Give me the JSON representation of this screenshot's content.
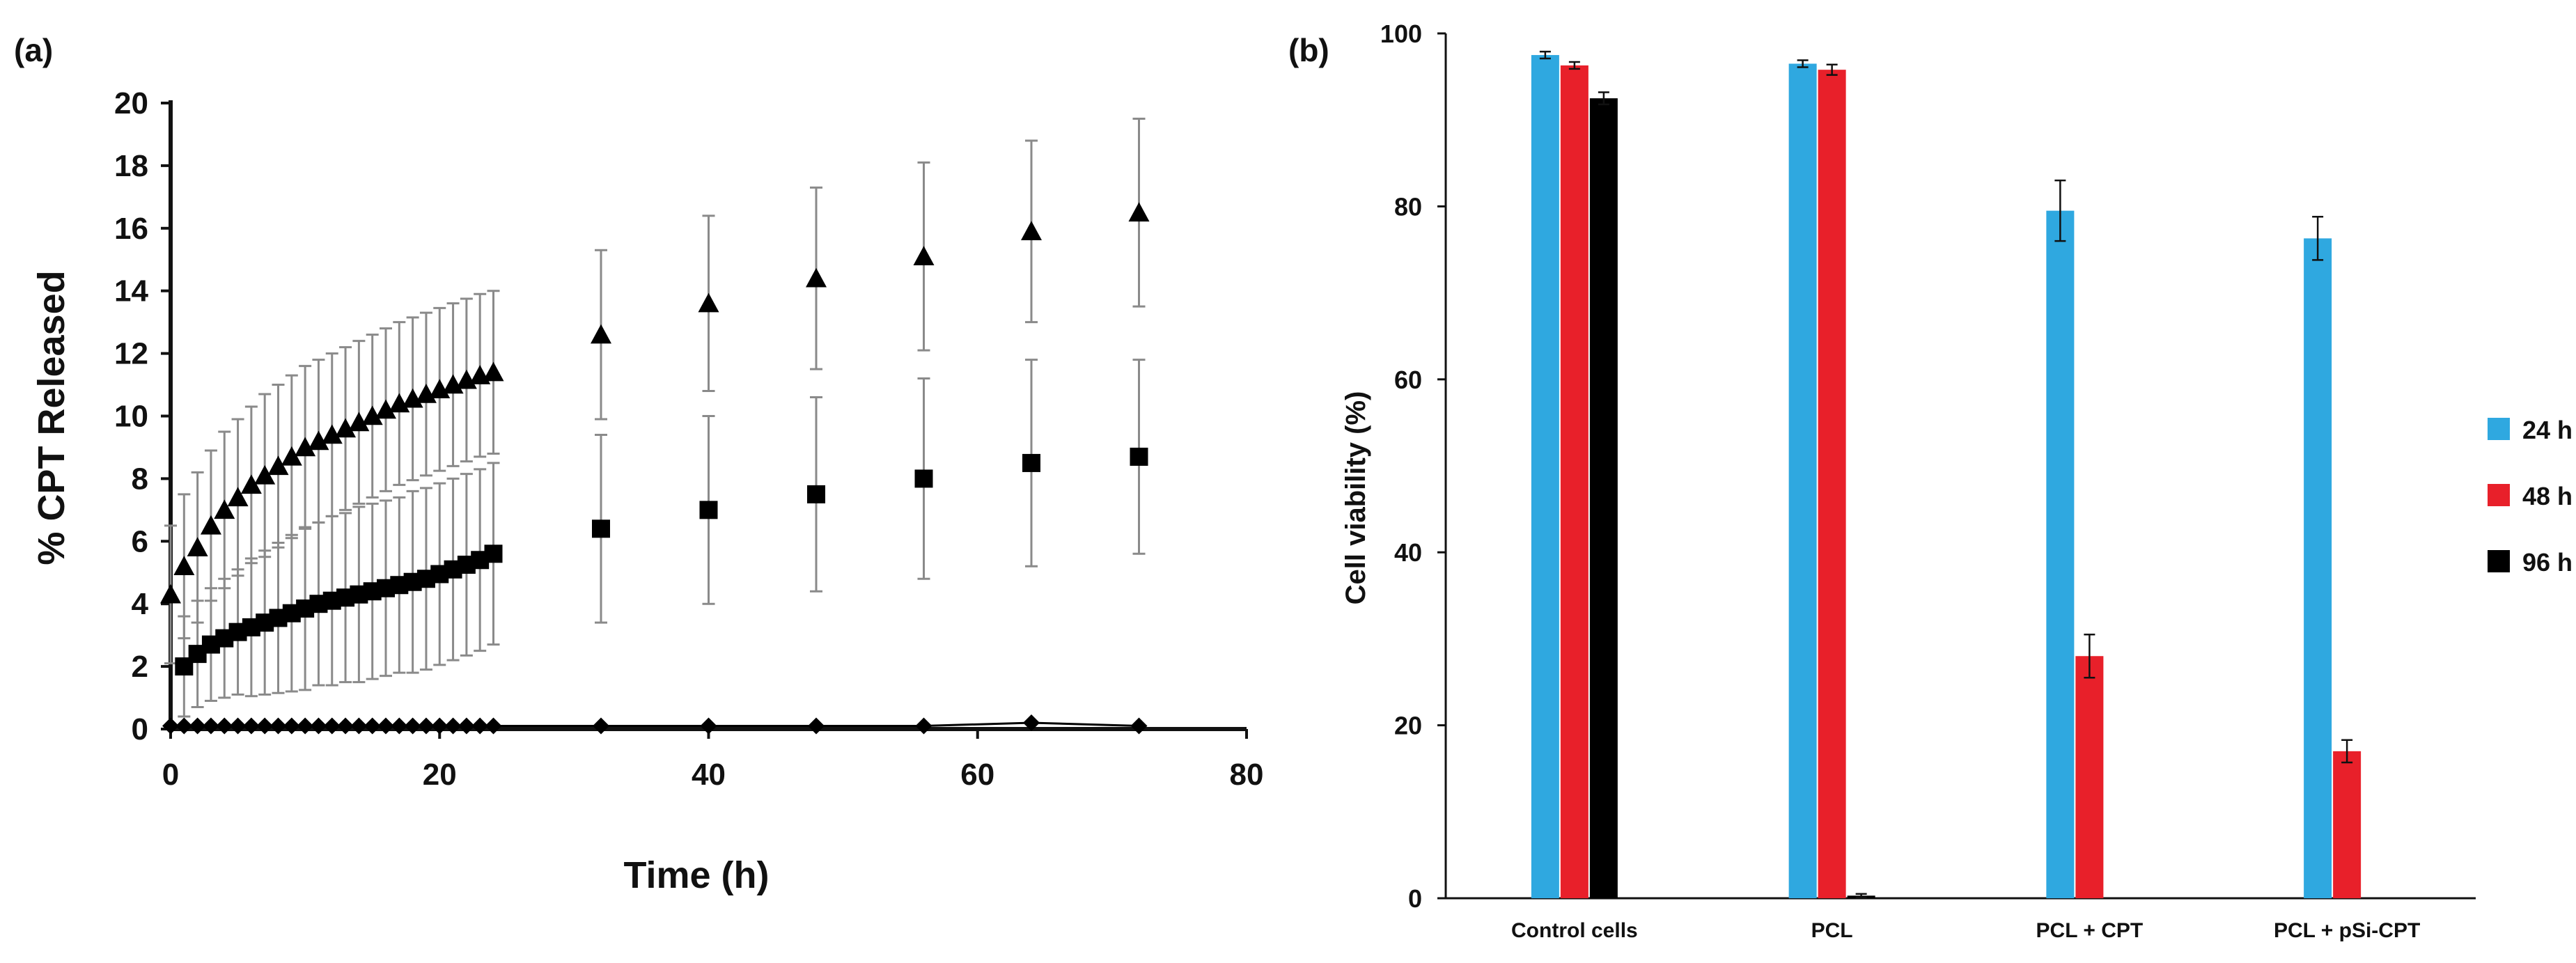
{
  "chart_data": [
    {
      "panel_label": "(a)",
      "type": "scatter",
      "xlabel": "Time (h)",
      "ylabel": "% CPT Released",
      "xlim": [
        0,
        80
      ],
      "ylim": [
        0,
        20
      ],
      "x_ticks": [
        "0",
        "20",
        "40",
        "60",
        "80"
      ],
      "y_ticks": [
        "0",
        "2",
        "4",
        "6",
        "8",
        "10",
        "12",
        "14",
        "16",
        "18",
        "20"
      ],
      "series": [
        {
          "marker": "triangle",
          "points": [
            {
              "x": 0,
              "y": 4.3,
              "err": 2.2
            },
            {
              "x": 1,
              "y": 5.2,
              "err": 2.3
            },
            {
              "x": 2,
              "y": 5.8,
              "err": 2.4
            },
            {
              "x": 3,
              "y": 6.5,
              "err": 2.4
            },
            {
              "x": 4,
              "y": 7.0,
              "err": 2.5
            },
            {
              "x": 5,
              "y": 7.4,
              "err": 2.5
            },
            {
              "x": 6,
              "y": 7.8,
              "err": 2.5
            },
            {
              "x": 7,
              "y": 8.1,
              "err": 2.6
            },
            {
              "x": 8,
              "y": 8.4,
              "err": 2.6
            },
            {
              "x": 9,
              "y": 8.7,
              "err": 2.6
            },
            {
              "x": 10,
              "y": 9.0,
              "err": 2.6
            },
            {
              "x": 11,
              "y": 9.2,
              "err": 2.6
            },
            {
              "x": 12,
              "y": 9.4,
              "err": 2.6
            },
            {
              "x": 13,
              "y": 9.6,
              "err": 2.6
            },
            {
              "x": 14,
              "y": 9.8,
              "err": 2.6
            },
            {
              "x": 15,
              "y": 10.0,
              "err": 2.6
            },
            {
              "x": 16,
              "y": 10.2,
              "err": 2.6
            },
            {
              "x": 17,
              "y": 10.4,
              "err": 2.6
            },
            {
              "x": 18,
              "y": 10.55,
              "err": 2.6
            },
            {
              "x": 19,
              "y": 10.7,
              "err": 2.6
            },
            {
              "x": 20,
              "y": 10.85,
              "err": 2.6
            },
            {
              "x": 21,
              "y": 11.0,
              "err": 2.6
            },
            {
              "x": 22,
              "y": 11.15,
              "err": 2.6
            },
            {
              "x": 23,
              "y": 11.3,
              "err": 2.6
            },
            {
              "x": 24,
              "y": 11.4,
              "err": 2.6
            },
            {
              "x": 32,
              "y": 12.6,
              "err": 2.7
            },
            {
              "x": 40,
              "y": 13.6,
              "err": 2.8
            },
            {
              "x": 48,
              "y": 14.4,
              "err": 2.9
            },
            {
              "x": 56,
              "y": 15.1,
              "err": 3.0
            },
            {
              "x": 64,
              "y": 15.9,
              "err": 2.9
            },
            {
              "x": 72,
              "y": 16.5,
              "err": 3.0
            }
          ]
        },
        {
          "marker": "square",
          "points": [
            {
              "x": 1,
              "y": 2.0,
              "err": 1.6
            },
            {
              "x": 2,
              "y": 2.4,
              "err": 1.7
            },
            {
              "x": 3,
              "y": 2.7,
              "err": 1.8
            },
            {
              "x": 4,
              "y": 2.9,
              "err": 1.9
            },
            {
              "x": 5,
              "y": 3.1,
              "err": 2.0
            },
            {
              "x": 6,
              "y": 3.25,
              "err": 2.2
            },
            {
              "x": 7,
              "y": 3.4,
              "err": 2.3
            },
            {
              "x": 8,
              "y": 3.55,
              "err": 2.4
            },
            {
              "x": 9,
              "y": 3.7,
              "err": 2.5
            },
            {
              "x": 10,
              "y": 3.85,
              "err": 2.6
            },
            {
              "x": 11,
              "y": 4.0,
              "err": 2.6
            },
            {
              "x": 12,
              "y": 4.1,
              "err": 2.7
            },
            {
              "x": 13,
              "y": 4.2,
              "err": 2.7
            },
            {
              "x": 14,
              "y": 4.3,
              "err": 2.8
            },
            {
              "x": 15,
              "y": 4.4,
              "err": 2.8
            },
            {
              "x": 16,
              "y": 4.5,
              "err": 2.8
            },
            {
              "x": 17,
              "y": 4.6,
              "err": 2.8
            },
            {
              "x": 18,
              "y": 4.7,
              "err": 2.9
            },
            {
              "x": 19,
              "y": 4.8,
              "err": 2.9
            },
            {
              "x": 20,
              "y": 4.95,
              "err": 2.9
            },
            {
              "x": 21,
              "y": 5.1,
              "err": 2.9
            },
            {
              "x": 22,
              "y": 5.25,
              "err": 2.9
            },
            {
              "x": 23,
              "y": 5.4,
              "err": 2.9
            },
            {
              "x": 24,
              "y": 5.6,
              "err": 2.9
            },
            {
              "x": 32,
              "y": 6.4,
              "err": 3.0
            },
            {
              "x": 40,
              "y": 7.0,
              "err": 3.0
            },
            {
              "x": 48,
              "y": 7.5,
              "err": 3.1
            },
            {
              "x": 56,
              "y": 8.0,
              "err": 3.2
            },
            {
              "x": 64,
              "y": 8.5,
              "err": 3.3
            },
            {
              "x": 72,
              "y": 8.7,
              "err": 3.1
            }
          ]
        },
        {
          "marker": "diamond",
          "points": [
            {
              "x": 0,
              "y": 0.1
            },
            {
              "x": 1,
              "y": 0.1
            },
            {
              "x": 2,
              "y": 0.1
            },
            {
              "x": 3,
              "y": 0.1
            },
            {
              "x": 4,
              "y": 0.1
            },
            {
              "x": 5,
              "y": 0.1
            },
            {
              "x": 6,
              "y": 0.1
            },
            {
              "x": 7,
              "y": 0.1
            },
            {
              "x": 8,
              "y": 0.1
            },
            {
              "x": 9,
              "y": 0.1
            },
            {
              "x": 10,
              "y": 0.1
            },
            {
              "x": 11,
              "y": 0.1
            },
            {
              "x": 12,
              "y": 0.1
            },
            {
              "x": 13,
              "y": 0.1
            },
            {
              "x": 14,
              "y": 0.1
            },
            {
              "x": 15,
              "y": 0.1
            },
            {
              "x": 16,
              "y": 0.1
            },
            {
              "x": 17,
              "y": 0.1
            },
            {
              "x": 18,
              "y": 0.1
            },
            {
              "x": 19,
              "y": 0.1
            },
            {
              "x": 20,
              "y": 0.1
            },
            {
              "x": 21,
              "y": 0.1
            },
            {
              "x": 22,
              "y": 0.1
            },
            {
              "x": 23,
              "y": 0.1
            },
            {
              "x": 24,
              "y": 0.1
            },
            {
              "x": 32,
              "y": 0.1
            },
            {
              "x": 40,
              "y": 0.1
            },
            {
              "x": 48,
              "y": 0.1
            },
            {
              "x": 56,
              "y": 0.1
            },
            {
              "x": 64,
              "y": 0.2
            },
            {
              "x": 72,
              "y": 0.1
            }
          ]
        }
      ]
    },
    {
      "panel_label": "(b)",
      "type": "bar",
      "ylabel": "Cell viability (%)",
      "xlabel": "",
      "ylim": [
        0,
        100
      ],
      "y_ticks": [
        "0",
        "20",
        "40",
        "60",
        "80",
        "100"
      ],
      "categories": [
        "Control cells",
        "PCL",
        "PCL + CPT",
        "PCL + pSi-CPT"
      ],
      "series": [
        {
          "name": "24 h",
          "color": "#2FA8E0",
          "values": [
            97.5,
            96.5,
            79.5,
            76.3
          ],
          "errors": [
            0.4,
            0.4,
            3.5,
            2.5
          ]
        },
        {
          "name": "48 h",
          "color": "#E8202A",
          "values": [
            96.3,
            95.8,
            28.0,
            17.0
          ],
          "errors": [
            0.4,
            0.6,
            2.5,
            1.3
          ]
        },
        {
          "name": "96 h",
          "color": "#000000",
          "values": [
            92.5,
            0.3,
            null,
            null
          ],
          "errors": [
            0.7,
            0.2,
            null,
            null
          ]
        }
      ],
      "legend_position": "right"
    }
  ]
}
